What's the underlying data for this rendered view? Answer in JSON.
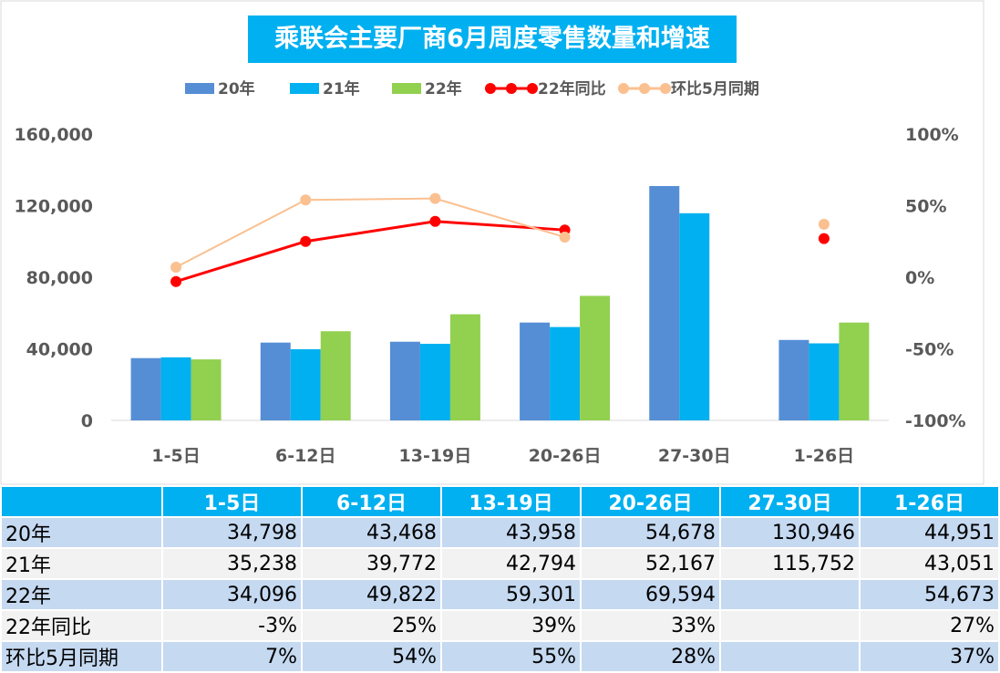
{
  "chart_data": {
    "type": "bar",
    "title": "乘联会主要厂商6月周度零售数量和增速",
    "categories": [
      "1-5日",
      "6-12日",
      "13-19日",
      "20-26日",
      "27-30日",
      "1-26日"
    ],
    "series": [
      {
        "name": "20年",
        "kind": "bar",
        "axis": "left",
        "color": "#558ed5",
        "values": [
          34798,
          43468,
          43958,
          54678,
          130946,
          44951
        ]
      },
      {
        "name": "21年",
        "kind": "bar",
        "axis": "left",
        "color": "#00b0f0",
        "values": [
          35238,
          39772,
          42794,
          52167,
          115752,
          43051
        ]
      },
      {
        "name": "22年",
        "kind": "bar",
        "axis": "left",
        "color": "#92d050",
        "values": [
          34096,
          49822,
          59301,
          69594,
          null,
          54673
        ]
      },
      {
        "name": "22年同比",
        "kind": "line",
        "axis": "right",
        "color": "#ff0000",
        "values": [
          -3,
          25,
          39,
          33,
          null,
          27
        ]
      },
      {
        "name": "环比5月同期",
        "kind": "line",
        "axis": "right",
        "color": "#fac090",
        "values": [
          7,
          54,
          55,
          28,
          null,
          37
        ]
      }
    ],
    "yleft": {
      "min": 0,
      "max": 160000,
      "ticks": [
        "0",
        "40,000",
        "80,000",
        "120,000",
        "160,000"
      ]
    },
    "yright": {
      "min": -100,
      "max": 100,
      "ticks": [
        "-100%",
        "-50%",
        "0%",
        "50%",
        "100%"
      ]
    },
    "legend": "top",
    "grid": false
  },
  "table": {
    "header": [
      "",
      "1-5日",
      "6-12日",
      "13-19日",
      "20-26日",
      "27-30日",
      "1-26日"
    ],
    "rows": [
      [
        "20年",
        "34,798",
        "43,468",
        "43,958",
        "54,678",
        "130,946",
        "44,951"
      ],
      [
        "21年",
        "35,238",
        "39,772",
        "42,794",
        "52,167",
        "115,752",
        "43,051"
      ],
      [
        "22年",
        "34,096",
        "49,822",
        "59,301",
        "69,594",
        "",
        "54,673"
      ],
      [
        "22年同比",
        "-3%",
        "25%",
        "39%",
        "33%",
        "",
        "27%"
      ],
      [
        "环比5月同期",
        "7%",
        "54%",
        "55%",
        "28%",
        "",
        "37%"
      ]
    ]
  }
}
